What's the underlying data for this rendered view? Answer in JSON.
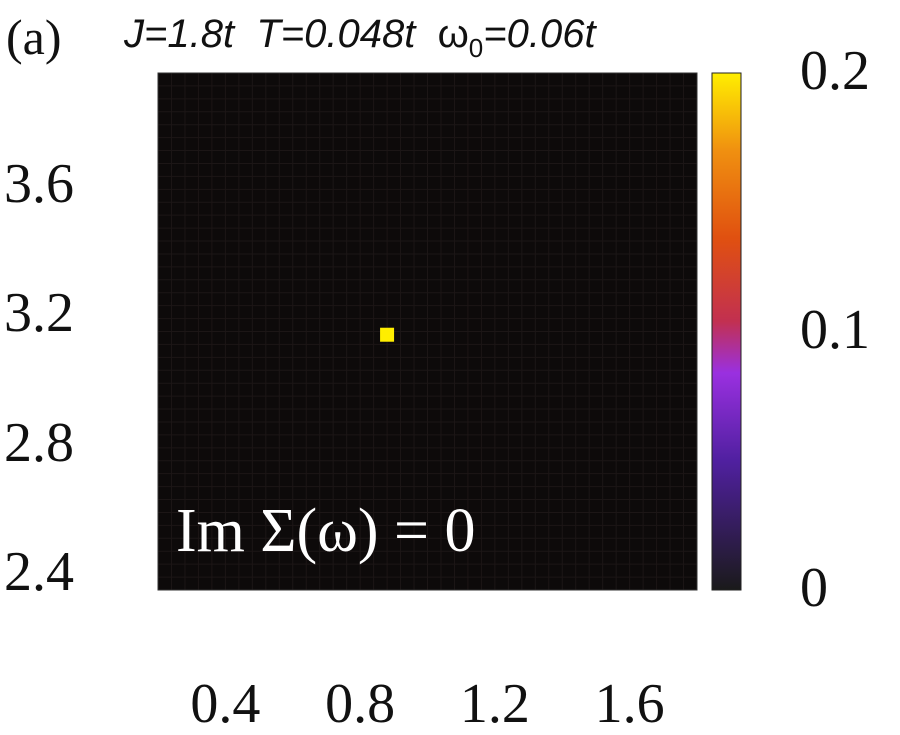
{
  "panel_label": "(a)",
  "params": {
    "j": "J=1.8t",
    "t": "T=0.048t",
    "omega_prefix": "ω",
    "omega_sub": "0",
    "omega_value": "=0.06t"
  },
  "annotation": "Im Σ(ω) = 0",
  "colors": {
    "background": "#0d0a0a",
    "peak": "#ffee00",
    "colormap": [
      "#1a1a1a",
      "#5020a0",
      "#9a30e0",
      "#c23050",
      "#e05010",
      "#f09010",
      "#ffee00"
    ]
  },
  "chart_data": {
    "type": "heatmap",
    "title": "",
    "xlabel": "",
    "ylabel": "",
    "xlim": [
      0.2,
      1.8
    ],
    "ylim": [
      2.35,
      3.95
    ],
    "x_ticks": [
      "0.4",
      "0.8",
      "1.2",
      "1.6"
    ],
    "y_ticks": [
      "2.4",
      "2.8",
      "3.2",
      "3.6"
    ],
    "colorbar": {
      "range": [
        0,
        0.2
      ],
      "ticks": [
        "0",
        "0.1",
        "0.2"
      ]
    },
    "background_value": 0,
    "points": [
      {
        "x": 0.88,
        "y": 3.14,
        "value": 0.2
      }
    ],
    "grid": false
  }
}
